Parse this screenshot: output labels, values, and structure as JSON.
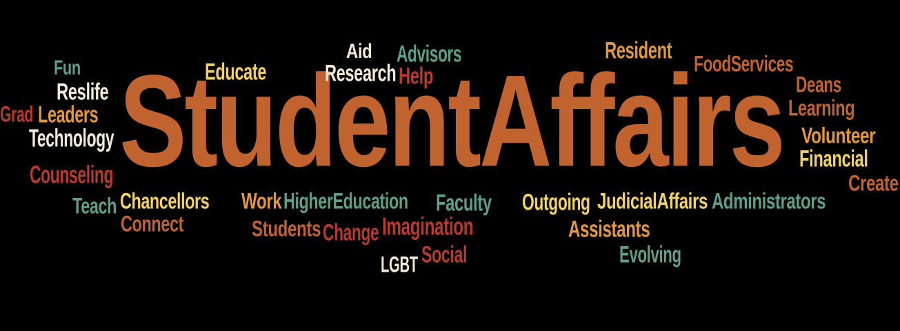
{
  "palette": {
    "background": "#000000",
    "orange": "#c0632f",
    "teal": "#5e9e8a",
    "yellow": "#f2d166",
    "cream": "#f3ead7",
    "red": "#b83a2c",
    "amber": "#e2993e"
  },
  "cloud": {
    "words": [
      {
        "text": "StudentAffairs",
        "color": "orange"
      },
      {
        "text": "Fun",
        "color": "teal"
      },
      {
        "text": "Reslife",
        "color": "cream"
      },
      {
        "text": "Grad",
        "color": "red"
      },
      {
        "text": "Leaders",
        "color": "amber"
      },
      {
        "text": "Technology",
        "color": "cream"
      },
      {
        "text": "Counseling",
        "color": "red"
      },
      {
        "text": "Teach",
        "color": "teal"
      },
      {
        "text": "Chancellors",
        "color": "yellow"
      },
      {
        "text": "Connect",
        "color": "orange"
      },
      {
        "text": "Educate",
        "color": "yellow"
      },
      {
        "text": "Aid",
        "color": "cream"
      },
      {
        "text": "Research",
        "color": "cream"
      },
      {
        "text": "Advisors",
        "color": "teal"
      },
      {
        "text": "Help",
        "color": "red"
      },
      {
        "text": "Resident",
        "color": "amber"
      },
      {
        "text": "FoodServices",
        "color": "orange"
      },
      {
        "text": "Deans",
        "color": "orange"
      },
      {
        "text": "Learning",
        "color": "orange"
      },
      {
        "text": "Volunteer",
        "color": "amber"
      },
      {
        "text": "Financial",
        "color": "yellow"
      },
      {
        "text": "Create",
        "color": "orange"
      },
      {
        "text": "Work",
        "color": "amber"
      },
      {
        "text": "HigherEducation",
        "color": "teal"
      },
      {
        "text": "Faculty",
        "color": "teal"
      },
      {
        "text": "Outgoing",
        "color": "yellow"
      },
      {
        "text": "JudicialAffairs",
        "color": "yellow"
      },
      {
        "text": "Administrators",
        "color": "teal"
      },
      {
        "text": "Students",
        "color": "orange"
      },
      {
        "text": "Change",
        "color": "red"
      },
      {
        "text": "Imagination",
        "color": "red"
      },
      {
        "text": "Assistants",
        "color": "amber"
      },
      {
        "text": "Evolving",
        "color": "teal"
      },
      {
        "text": "LGBT",
        "color": "cream"
      },
      {
        "text": "Social",
        "color": "red"
      }
    ]
  }
}
